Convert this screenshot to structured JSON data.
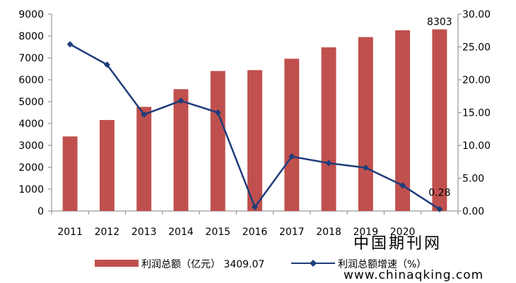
{
  "chart_data": {
    "type": "bar+line",
    "categories": [
      "2011",
      "2012",
      "2013",
      "2014",
      "2015",
      "2016",
      "2017",
      "2018",
      "2019",
      "2020",
      ""
    ],
    "series": [
      {
        "name": "利润总额（亿元） 3409.07",
        "type": "bar",
        "axis": "left",
        "color": "#c0504d",
        "values": [
          3409,
          4160,
          4760,
          5570,
          6400,
          6440,
          6960,
          7480,
          7950,
          8260,
          8303
        ]
      },
      {
        "name": "利润总额增速（%）",
        "type": "line",
        "axis": "right",
        "color": "#1f3d7a",
        "values": [
          25.4,
          22.3,
          14.7,
          16.8,
          15.0,
          0.6,
          8.3,
          7.3,
          6.6,
          3.9,
          0.28
        ]
      }
    ],
    "data_labels": [
      {
        "series": 0,
        "index": 10,
        "text": "8303"
      },
      {
        "series": 1,
        "index": 10,
        "text": "0.28"
      }
    ],
    "y_left": {
      "min": 0,
      "max": 9000,
      "step": 1000,
      "ticks": [
        "0",
        "1000",
        "2000",
        "3000",
        "4000",
        "5000",
        "6000",
        "7000",
        "8000",
        "9000"
      ]
    },
    "y_right": {
      "min": 0,
      "max": 30,
      "step": 5,
      "ticks": [
        "0.00",
        "5.00",
        "10.00",
        "15.00",
        "20.00",
        "25.00",
        "30.00"
      ]
    },
    "legend_position": "bottom",
    "grid": false
  },
  "watermark": {
    "text_cn": "中国期刊网",
    "text_url": "www.chinaqking.com"
  }
}
